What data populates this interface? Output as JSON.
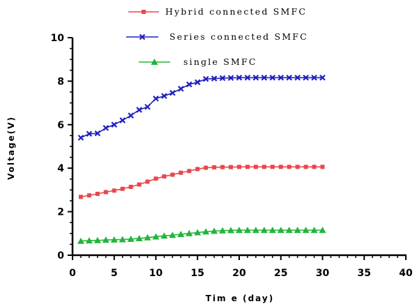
{
  "chart_data": {
    "type": "line",
    "xlabel": "Tim e (day)",
    "ylabel": "Voltage(V)",
    "xlim": [
      0,
      40
    ],
    "ylim": [
      0,
      10
    ],
    "xticks": [
      0,
      5,
      10,
      15,
      20,
      25,
      30,
      35,
      40
    ],
    "yticks": [
      0,
      2,
      4,
      6,
      8,
      10
    ],
    "grid": false,
    "legend_position": "top",
    "x": [
      1,
      2,
      3,
      4,
      5,
      6,
      7,
      8,
      9,
      10,
      11,
      12,
      13,
      14,
      15,
      16,
      17,
      18,
      19,
      20,
      21,
      22,
      23,
      24,
      25,
      26,
      27,
      28,
      29,
      30
    ],
    "series": [
      {
        "name": "Hybrid connected SMFC",
        "color": "#e8474c",
        "marker": "square",
        "values": [
          2.68,
          2.75,
          2.82,
          2.9,
          2.97,
          3.05,
          3.14,
          3.25,
          3.38,
          3.52,
          3.62,
          3.7,
          3.79,
          3.87,
          3.96,
          4.02,
          4.04,
          4.05,
          4.05,
          4.06,
          4.06,
          4.06,
          4.06,
          4.06,
          4.06,
          4.06,
          4.06,
          4.06,
          4.06,
          4.06
        ]
      },
      {
        "name": "Series connected SMFC",
        "color": "#1f1fbf",
        "marker": "x",
        "values": [
          5.4,
          5.58,
          5.6,
          5.85,
          6.0,
          6.2,
          6.42,
          6.68,
          6.82,
          7.2,
          7.32,
          7.46,
          7.65,
          7.85,
          7.95,
          8.1,
          8.12,
          8.14,
          8.15,
          8.16,
          8.16,
          8.16,
          8.16,
          8.16,
          8.16,
          8.16,
          8.16,
          8.16,
          8.16,
          8.16
        ]
      },
      {
        "name": "single SMFC",
        "color": "#22b53a",
        "marker": "triangle",
        "values": [
          0.65,
          0.67,
          0.68,
          0.7,
          0.71,
          0.72,
          0.74,
          0.77,
          0.81,
          0.85,
          0.89,
          0.92,
          0.96,
          1.0,
          1.04,
          1.08,
          1.11,
          1.13,
          1.14,
          1.15,
          1.15,
          1.15,
          1.15,
          1.15,
          1.15,
          1.15,
          1.15,
          1.15,
          1.15,
          1.15
        ]
      }
    ]
  }
}
